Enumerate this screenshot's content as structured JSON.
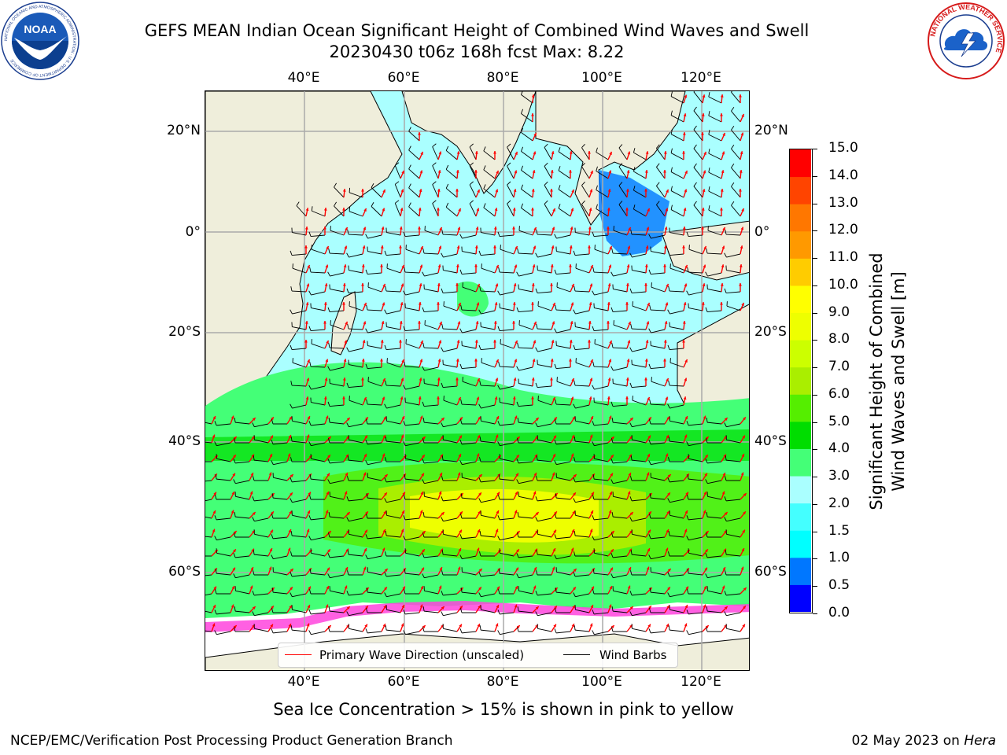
{
  "title": {
    "line1": "GEFS MEAN Indian Ocean Significant Height of Combined Wind Waves and Swell",
    "line2": "20230430 t06z 168h fcst   Max: 8.22"
  },
  "axes": {
    "lon_ticks": [
      "40°E",
      "60°E",
      "80°E",
      "100°E",
      "120°E"
    ],
    "lat_ticks": [
      "20°N",
      "0°",
      "20°S",
      "40°S",
      "60°S"
    ]
  },
  "map": {
    "lon_range": [
      20,
      129
    ],
    "lat_range": [
      -72,
      28
    ],
    "grid": true,
    "max_value": 8.22
  },
  "colorbar": {
    "label": "Significant Height of Combined Wind Waves and Swell [m]",
    "label_line1": "Significant Height of Combined",
    "label_line2": "Wind Waves and Swell [m]",
    "ticks": [
      "0.0",
      "0.5",
      "1.0",
      "1.5",
      "2.0",
      "3.0",
      "4.0",
      "5.0",
      "6.0",
      "7.0",
      "8.0",
      "9.0",
      "10.0",
      "11.0",
      "12.0",
      "13.0",
      "14.0",
      "15.0"
    ],
    "colors": [
      "#0000ff",
      "#0077ff",
      "#00ffff",
      "#44ffff",
      "#aaffff",
      "#44ff77",
      "#00dd00",
      "#55ee00",
      "#aaee00",
      "#ccff00",
      "#eeff00",
      "#ffff00",
      "#ffcc00",
      "#ff9900",
      "#ff7700",
      "#ff4400",
      "#ff0000"
    ]
  },
  "legend": {
    "wave_direction": "Primary Wave Direction (unscaled)",
    "wind_barbs": "Wind Barbs",
    "wave_color": "#ff0000",
    "barb_color": "#000000"
  },
  "caption": "Sea Ice Concentration > 15% is shown in pink to yellow",
  "footer": {
    "left": "NCEP/EMC/Verification Post Processing Product Generation Branch",
    "right_prefix": "02 May 2023 on ",
    "right_host": "Hera"
  },
  "logos": {
    "noaa_text": "NOAA",
    "noaa_ring": "NATIONAL OCEANIC AND ATMOSPHERIC ADMINISTRATION · U.S. DEPARTMENT OF COMMERCE",
    "nws_ring": "NATIONAL WEATHER SERVICE",
    "noaa_icon": "noaa-seagull-logo",
    "nws_icon": "nws-cloud-lightning-logo"
  }
}
